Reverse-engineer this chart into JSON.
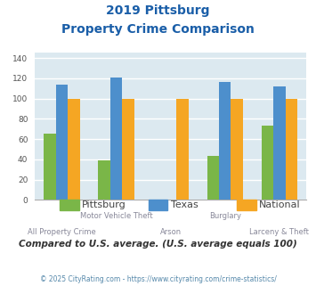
{
  "title_line1": "2019 Pittsburg",
  "title_line2": "Property Crime Comparison",
  "categories": [
    "All Property Crime",
    "Motor Vehicle Theft",
    "Arson",
    "Burglary",
    "Larceny & Theft"
  ],
  "label_row": [
    1,
    0,
    1,
    0,
    1
  ],
  "series": {
    "Pittsburg": [
      65,
      39,
      0,
      43,
      73
    ],
    "Texas": [
      114,
      121,
      0,
      116,
      112
    ],
    "National": [
      100,
      100,
      100,
      100,
      100
    ]
  },
  "colors": {
    "Pittsburg": "#7ab648",
    "Texas": "#4d8fcc",
    "National": "#f5a623"
  },
  "ylim": [
    0,
    145
  ],
  "yticks": [
    0,
    20,
    40,
    60,
    80,
    100,
    120,
    140
  ],
  "plot_bg": "#dce9f0",
  "grid_color": "#ffffff",
  "footer_text": "Compared to U.S. average. (U.S. average equals 100)",
  "copyright_text": "© 2025 CityRating.com - https://www.cityrating.com/crime-statistics/",
  "title_color": "#1a5ea8",
  "footer_color": "#333333",
  "copyright_color": "#5588aa",
  "label_color": "#888899",
  "bar_width": 0.22,
  "figsize": [
    3.55,
    3.3
  ],
  "dpi": 100
}
